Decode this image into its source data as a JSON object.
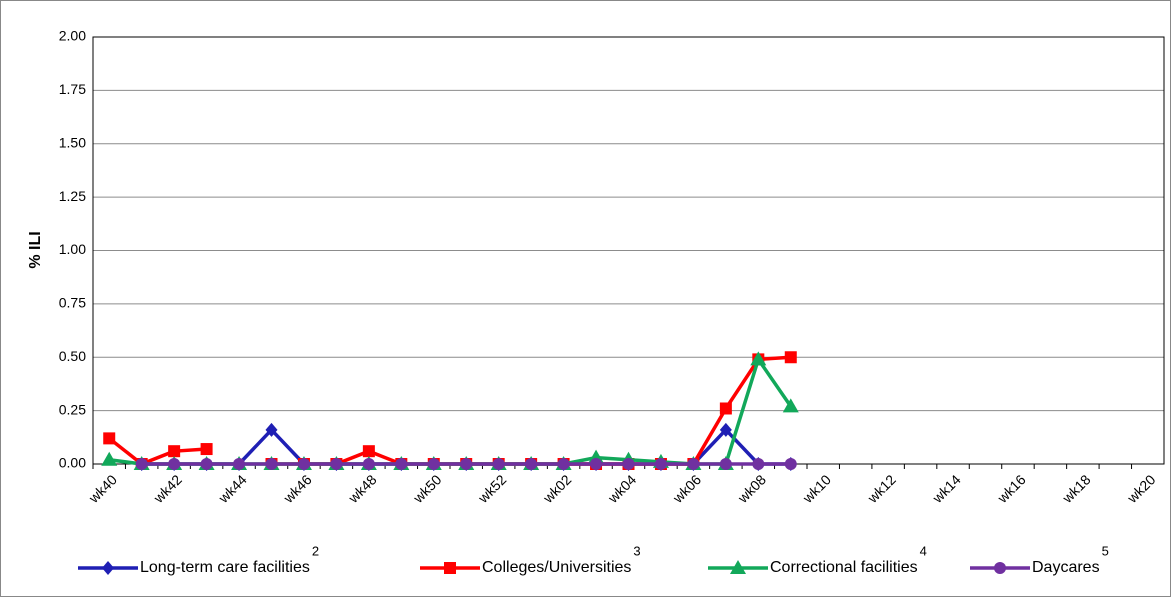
{
  "chart_data": {
    "type": "line",
    "y_label": "% ILI",
    "categories": [
      "wk40",
      null,
      "wk42",
      null,
      "wk44",
      null,
      "wk46",
      null,
      "wk48",
      null,
      "wk50",
      null,
      "wk52",
      null,
      "wk02",
      null,
      "wk04",
      null,
      "wk06",
      null,
      "wk08",
      null,
      "wk10",
      null,
      "wk12",
      null,
      "wk14",
      null,
      "wk16",
      null,
      "wk18",
      null,
      "wk20"
    ],
    "ylim": [
      0,
      2
    ],
    "yticks": [
      {
        "value": 0,
        "label": "0.00"
      },
      {
        "value": 0.25,
        "label": "0.25"
      },
      {
        "value": 0.5,
        "label": "0.50"
      },
      {
        "value": 0.75,
        "label": "0.75"
      },
      {
        "value": 1,
        "label": "1.00"
      },
      {
        "value": 1.25,
        "label": "1.25"
      },
      {
        "value": 1.5,
        "label": "1.50"
      },
      {
        "value": 1.75,
        "label": "1.75"
      },
      {
        "value": 2,
        "label": "2.00"
      }
    ],
    "grid": true,
    "legend": "bottom",
    "series": [
      {
        "name": "Long-term care facilities",
        "superscript": "2",
        "color": "#1f1fb4",
        "marker": "diamond",
        "values": [
          null,
          0,
          0,
          0,
          0,
          0.16,
          0,
          0,
          0,
          0,
          0,
          0,
          0,
          0,
          0,
          0,
          0,
          0,
          0,
          0.16,
          0,
          0,
          null,
          null,
          null,
          null,
          null,
          null,
          null,
          null,
          null,
          null,
          null
        ]
      },
      {
        "name": "Colleges/Universities",
        "superscript": "3",
        "color": "#ff0000",
        "marker": "square",
        "values": [
          0.12,
          0,
          0.06,
          0.07,
          null,
          0,
          0,
          0,
          0.06,
          0,
          0,
          0,
          0,
          0,
          0,
          0,
          0,
          0,
          0,
          0.26,
          0.49,
          0.5,
          null,
          null,
          null,
          null,
          null,
          null,
          null,
          null,
          null,
          null,
          null
        ]
      },
      {
        "name": "Correctional facilities",
        "superscript": "4",
        "color": "#12a85a",
        "marker": "triangle",
        "values": [
          0.02,
          0,
          0,
          0,
          0,
          0,
          0,
          0,
          0,
          0,
          0,
          0,
          0,
          0,
          0,
          0.03,
          0.02,
          0.01,
          0,
          0,
          0.49,
          0.27,
          null,
          null,
          null,
          null,
          null,
          null,
          null,
          null,
          null,
          null,
          null
        ]
      },
      {
        "name": "Daycares",
        "superscript": "5",
        "color": "#7030a0",
        "marker": "circle",
        "values": [
          null,
          0,
          0,
          0,
          0,
          0,
          0,
          0,
          0,
          0,
          0,
          0,
          0,
          0,
          0,
          0,
          0,
          0,
          0,
          0,
          0,
          0,
          null,
          null,
          null,
          null,
          null,
          null,
          null,
          null,
          null,
          null,
          null
        ]
      }
    ]
  }
}
